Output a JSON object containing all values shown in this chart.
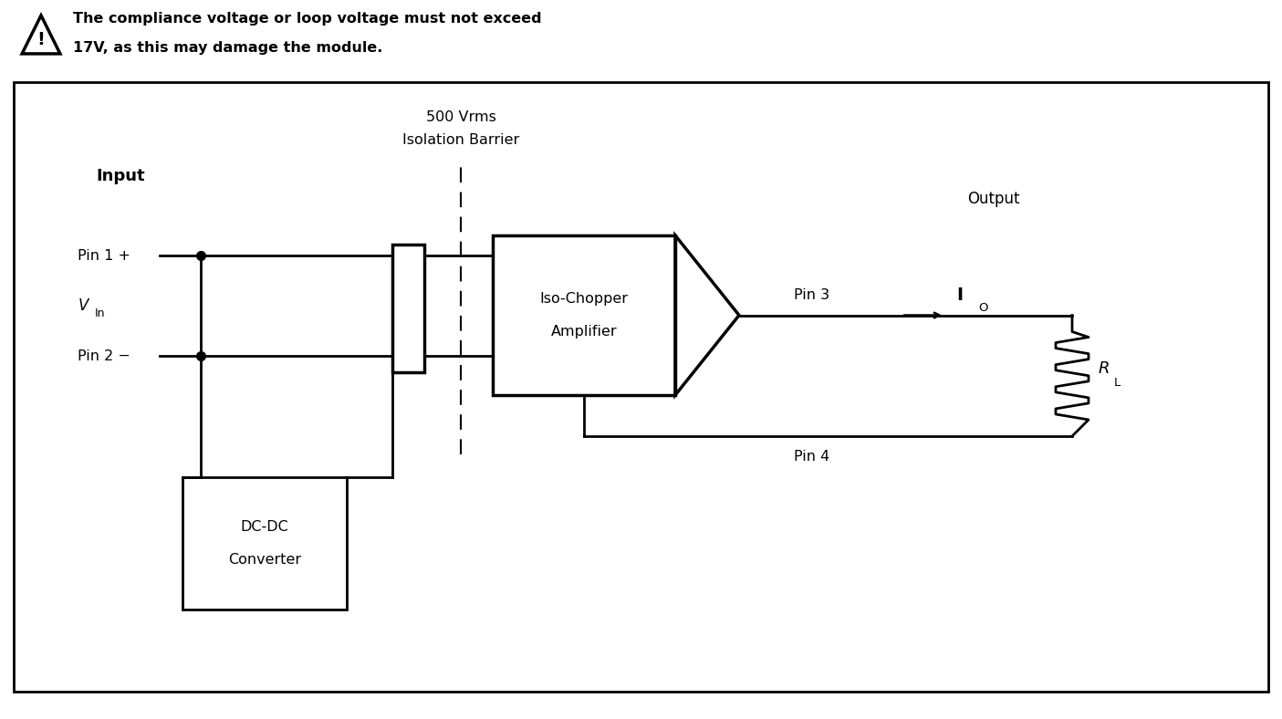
{
  "warning_text_line1": "The compliance voltage or loop voltage must not exceed",
  "warning_text_line2": "17V, as this may damage the module.",
  "isolation_barrier_text_1": "500 Vrms",
  "isolation_barrier_text_2": "Isolation Barrier",
  "input_label": "Input",
  "output_label": "Output",
  "pin1_text": "Pin 1 +",
  "pin2_text": "Pin 2 −",
  "pin3_text": "Pin 3",
  "pin4_text": "Pin 4",
  "dcdc_line1": "DC-DC",
  "dcdc_line2": "Converter",
  "amp_line1": "Iso-Chopper",
  "amp_line2": "Amplifier",
  "bg_color": "#ffffff",
  "line_color": "#000000",
  "fig_width": 14.05,
  "fig_height": 7.88,
  "dpi": 100
}
